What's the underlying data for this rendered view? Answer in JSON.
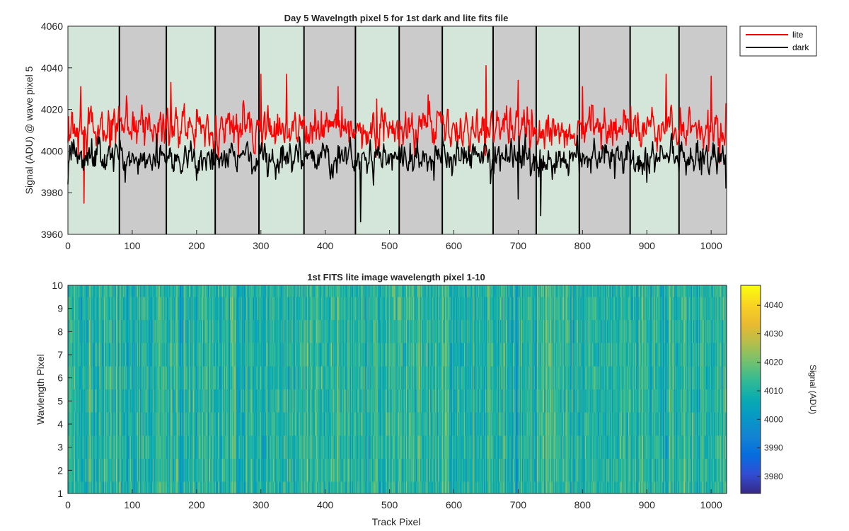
{
  "chart_data": [
    {
      "type": "line",
      "title": "Day 5 Wavelngth pixel 5 for 1st dark and lite fits file",
      "xlabel": "",
      "ylabel": "Signal (ADU) @ wave pixel 5",
      "xlim": [
        0,
        1024
      ],
      "ylim": [
        3960,
        4060
      ],
      "xticks": [
        0,
        100,
        200,
        300,
        400,
        500,
        600,
        700,
        800,
        900,
        1000
      ],
      "yticks": [
        3960,
        3980,
        4000,
        4020,
        4040,
        4060
      ],
      "grid": false,
      "legend_position": "outside-top-right",
      "background_bands": {
        "boundaries": [
          0,
          80,
          153,
          229,
          297,
          367,
          447,
          515,
          582,
          661,
          728,
          795,
          874,
          950,
          1024
        ],
        "colors": [
          "#d4e6d9",
          "#cbcbcb"
        ]
      },
      "series": [
        {
          "name": "lite",
          "color": "#ff0000",
          "mean": 4011,
          "spread": 7.2,
          "n_points": 1024,
          "samples": [
            [
              0,
              4004
            ],
            [
              20,
              4031
            ],
            [
              25,
              3975
            ],
            [
              100,
              4014
            ],
            [
              160,
              4033
            ],
            [
              200,
              4020
            ],
            [
              300,
              4037
            ],
            [
              340,
              4037
            ],
            [
              420,
              4031
            ],
            [
              480,
              4025
            ],
            [
              560,
              4027
            ],
            [
              650,
              4041
            ],
            [
              700,
              4034
            ],
            [
              800,
              4031
            ],
            [
              930,
              4037
            ],
            [
              1000,
              4036
            ],
            [
              1024,
              4023
            ]
          ]
        },
        {
          "name": "dark",
          "color": "#000000",
          "mean": 3997,
          "spread": 5.5,
          "n_points": 1024,
          "samples": [
            [
              0,
              3984
            ],
            [
              100,
              3999
            ],
            [
              200,
              3986
            ],
            [
              300,
              4000
            ],
            [
              455,
              3966
            ],
            [
              500,
              3996
            ],
            [
              600,
              3998
            ],
            [
              700,
              3977
            ],
            [
              735,
              3969
            ],
            [
              800,
              3999
            ],
            [
              900,
              3985
            ],
            [
              1024,
              3982
            ]
          ]
        }
      ]
    },
    {
      "type": "heatmap",
      "title": "1st FITS lite image wavelength pixel 1-10",
      "xlabel": "Track Pixel",
      "ylabel": "Wavlength Pixel",
      "xlim": [
        0,
        1024
      ],
      "ylim": [
        1,
        10
      ],
      "xticks": [
        0,
        100,
        200,
        300,
        400,
        500,
        600,
        700,
        800,
        900,
        1000
      ],
      "yticks": [
        1,
        2,
        3,
        4,
        5,
        6,
        7,
        8,
        9,
        10
      ],
      "rows": 10,
      "columns": 1024,
      "colormap": "parula",
      "value_mean": 4011,
      "value_spread": 7,
      "colorbar": {
        "label": "Signal (ADU)",
        "range": [
          3974,
          4047
        ],
        "ticks": [
          3980,
          3990,
          4000,
          4010,
          4020,
          4030,
          4040
        ]
      }
    }
  ]
}
